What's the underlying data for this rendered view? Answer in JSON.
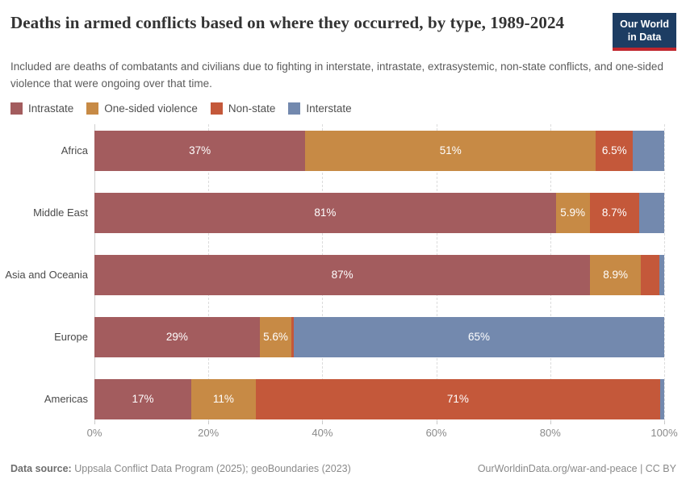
{
  "header": {
    "title": "Deaths in armed conflicts based on where they occurred, by type, 1989-2024",
    "subtitle": "Included are deaths of combatants and civilians due to fighting in interstate, intrastate, extrasystemic, non-state conflicts, and one-sided violence that were ongoing over that time.",
    "logo": {
      "line1": "Our World",
      "line2": "in Data",
      "bg_color": "#1D3D63",
      "accent_color": "#C0262D"
    }
  },
  "legend": [
    {
      "label": "Intrastate",
      "color": "#A35C5E"
    },
    {
      "label": "One-sided violence",
      "color": "#C78A45"
    },
    {
      "label": "Non-state",
      "color": "#C4583A"
    },
    {
      "label": "Interstate",
      "color": "#7389AE"
    }
  ],
  "chart_data": {
    "type": "bar",
    "stacked": true,
    "orientation": "horizontal",
    "categories": [
      "Africa",
      "Middle East",
      "Asia and Oceania",
      "Europe",
      "Americas"
    ],
    "series": [
      {
        "name": "Intrastate",
        "color": "#A35C5E",
        "values": [
          37,
          81,
          87,
          29,
          17
        ],
        "labels": [
          "37%",
          "81%",
          "87%",
          "29%",
          "17%"
        ]
      },
      {
        "name": "One-sided violence",
        "color": "#C78A45",
        "values": [
          51,
          5.9,
          8.9,
          5.6,
          11.3
        ],
        "labels": [
          "51%",
          "5.9%",
          "8.9%",
          "5.6%",
          "11%"
        ]
      },
      {
        "name": "Non-state",
        "color": "#C4583A",
        "values": [
          6.5,
          8.7,
          3.2,
          0.4,
          71
        ],
        "labels": [
          "6.5%",
          "8.7%",
          "",
          "",
          "71%"
        ]
      },
      {
        "name": "Interstate",
        "color": "#7389AE",
        "values": [
          5.5,
          4.4,
          0.9,
          65,
          0.7
        ],
        "labels": [
          "",
          "",
          "",
          "65%",
          ""
        ]
      }
    ],
    "xlabel": "",
    "ylabel": "",
    "xlim": [
      0,
      100
    ],
    "grid": true,
    "gridline_positions": [
      0,
      20,
      40,
      60,
      80,
      100
    ],
    "xticks": [
      "0%",
      "20%",
      "40%",
      "60%",
      "80%",
      "100%"
    ],
    "legend_position": "top"
  },
  "footer": {
    "datasource_label": "Data source:",
    "datasource_text": "Uppsala Conflict Data Program (2025); geoBoundaries (2023)",
    "link_text": "OurWorldinData.org/war-and-peace | CC BY"
  }
}
